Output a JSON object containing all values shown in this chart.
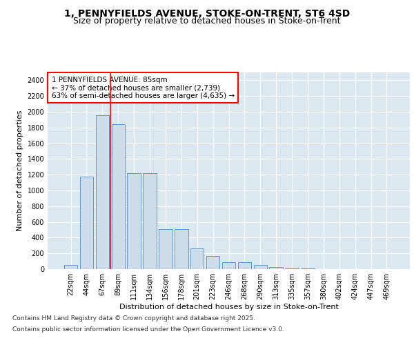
{
  "title_line1": "1, PENNYFIELDS AVENUE, STOKE-ON-TRENT, ST6 4SD",
  "title_line2": "Size of property relative to detached houses in Stoke-on-Trent",
  "xlabel": "Distribution of detached houses by size in Stoke-on-Trent",
  "ylabel": "Number of detached properties",
  "categories": [
    "22sqm",
    "44sqm",
    "67sqm",
    "89sqm",
    "111sqm",
    "134sqm",
    "156sqm",
    "178sqm",
    "201sqm",
    "223sqm",
    "246sqm",
    "268sqm",
    "290sqm",
    "313sqm",
    "335sqm",
    "357sqm",
    "380sqm",
    "402sqm",
    "424sqm",
    "447sqm",
    "469sqm"
  ],
  "values": [
    55,
    1175,
    1960,
    1840,
    1220,
    1220,
    510,
    510,
    265,
    165,
    90,
    90,
    55,
    30,
    10,
    5,
    2,
    1,
    1,
    1,
    1
  ],
  "bar_color": "#cddceb",
  "bar_edge_color": "#6699cc",
  "vline_x": 3,
  "vline_color": "red",
  "annotation_text": "1 PENNYFIELDS AVENUE: 85sqm\n← 37% of detached houses are smaller (2,739)\n63% of semi-detached houses are larger (4,635) →",
  "annotation_box_color": "white",
  "annotation_box_edge_color": "red",
  "ylim": [
    0,
    2500
  ],
  "yticks": [
    0,
    200,
    400,
    600,
    800,
    1000,
    1200,
    1400,
    1600,
    1800,
    2000,
    2200,
    2400
  ],
  "bg_color": "#dce8f0",
  "grid_color": "white",
  "footer_line1": "Contains HM Land Registry data © Crown copyright and database right 2025.",
  "footer_line2": "Contains public sector information licensed under the Open Government Licence v3.0.",
  "title_fontsize": 10,
  "subtitle_fontsize": 9,
  "axis_label_fontsize": 8,
  "tick_fontsize": 7,
  "annotation_fontsize": 7.5,
  "footer_fontsize": 6.5
}
